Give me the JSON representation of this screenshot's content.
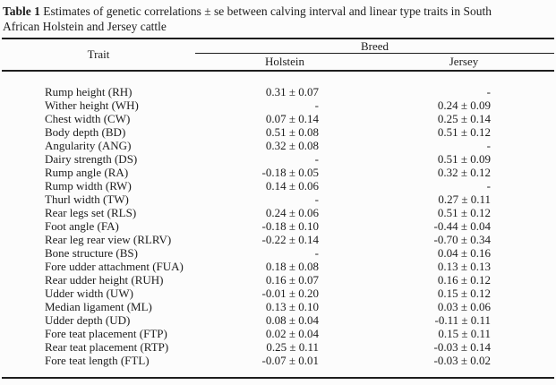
{
  "title": {
    "label": "Table 1",
    "line1": "Estimates of genetic correlations ± se between calving interval and linear type traits in South",
    "line2": "African Holstein and Jersey cattle"
  },
  "table": {
    "trait_header": "Trait",
    "breed_header": "Breed",
    "columns": [
      "Holstein",
      "Jersey"
    ],
    "rows": [
      {
        "trait": "Rump height (RH)",
        "holstein": "0.31 ± 0.07",
        "jersey": "-"
      },
      {
        "trait": "Wither height (WH)",
        "holstein": "-",
        "jersey": "0.24 ± 0.09"
      },
      {
        "trait": "Chest width (CW)",
        "holstein": "0.07 ± 0.14",
        "jersey": "0.25 ± 0.14"
      },
      {
        "trait": "Body depth (BD)",
        "holstein": "0.51 ± 0.08",
        "jersey": "0.51 ± 0.12"
      },
      {
        "trait": "Angularity (ANG)",
        "holstein": "0.32 ± 0.08",
        "jersey": "-"
      },
      {
        "trait": "Dairy strength (DS)",
        "holstein": "-",
        "jersey": "0.51 ± 0.09"
      },
      {
        "trait": "Rump angle (RA)",
        "holstein": "-0.18 ± 0.05",
        "jersey": "0.32 ± 0.12"
      },
      {
        "trait": "Rump width (RW)",
        "holstein": "0.14 ± 0.06",
        "jersey": "-"
      },
      {
        "trait": "Thurl width (TW)",
        "holstein": "-",
        "jersey": "0.27 ± 0.11"
      },
      {
        "trait": "Rear legs set (RLS)",
        "holstein": "0.24 ± 0.06",
        "jersey": "0.51 ± 0.12"
      },
      {
        "trait": "Foot angle (FA)",
        "holstein": "-0.18 ± 0.10",
        "jersey": "-0.44 ± 0.04"
      },
      {
        "trait": "Rear leg rear view (RLRV)",
        "holstein": "-0.22 ± 0.14",
        "jersey": "-0.70 ± 0.34"
      },
      {
        "trait": "Bone structure (BS)",
        "holstein": "-",
        "jersey": "0.04 ± 0.16"
      },
      {
        "trait": "Fore udder attachment (FUA)",
        "holstein": "0.18 ± 0.08",
        "jersey": "0.13 ± 0.13"
      },
      {
        "trait": "Rear udder height (RUH)",
        "holstein": "0.16 ± 0.07",
        "jersey": "0.16 ± 0.12"
      },
      {
        "trait": "Udder width (UW)",
        "holstein": "-0.01 ± 0.20",
        "jersey": "0.15 ± 0.12"
      },
      {
        "trait": "Median ligament (ML)",
        "holstein": "0.13 ± 0.10",
        "jersey": "0.03 ± 0.06"
      },
      {
        "trait": "Udder depth (UD)",
        "holstein": "0.08 ± 0.04",
        "jersey": "-0.11 ± 0.11"
      },
      {
        "trait": "Fore teat placement (FTP)",
        "holstein": "0.02 ± 0.04",
        "jersey": "0.15 ± 0.11"
      },
      {
        "trait": "Rear teat placement (RTP)",
        "holstein": "0.25 ± 0.11",
        "jersey": "-0.03 ± 0.14"
      },
      {
        "trait": "Fore teat length (FTL)",
        "holstein": "-0.07 ± 0.01",
        "jersey": "-0.03 ± 0.02"
      }
    ]
  }
}
